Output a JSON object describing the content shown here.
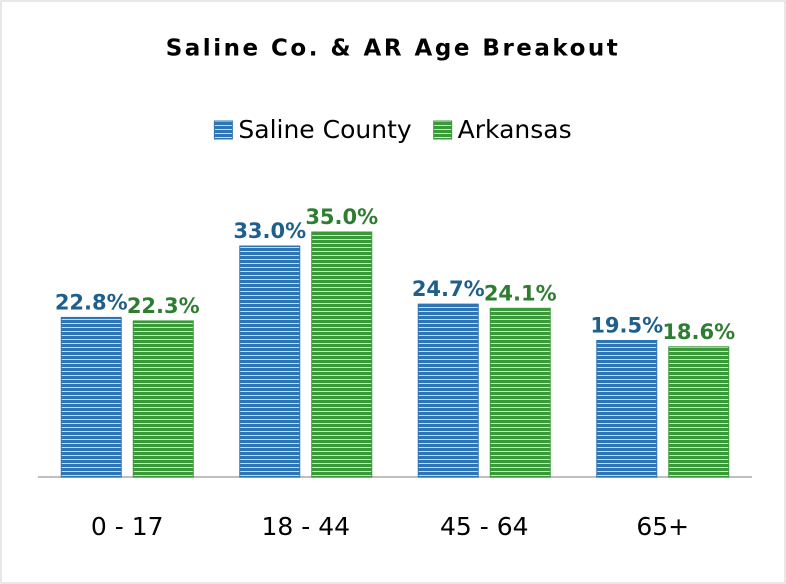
{
  "chart_data": {
    "type": "bar",
    "title": "Saline Co. & AR Age Breakout",
    "categories": [
      "0 - 17",
      "18 - 44",
      "45 - 64",
      "65+"
    ],
    "series": [
      {
        "name": "Saline County",
        "color": "#2e75b6",
        "values": [
          22.8,
          33.0,
          24.7,
          19.5
        ],
        "value_labels": [
          "22.8%",
          "33.0%",
          "24.7%",
          "19.5%"
        ],
        "label_color": "#1f5f8b"
      },
      {
        "name": "Arkansas",
        "color": "#3a9a3a",
        "values": [
          22.3,
          35.0,
          24.1,
          18.6
        ],
        "value_labels": [
          "22.3%",
          "35.0%",
          "24.1%",
          "18.6%"
        ],
        "label_color": "#2e7d32"
      }
    ],
    "legend": "top"
  }
}
